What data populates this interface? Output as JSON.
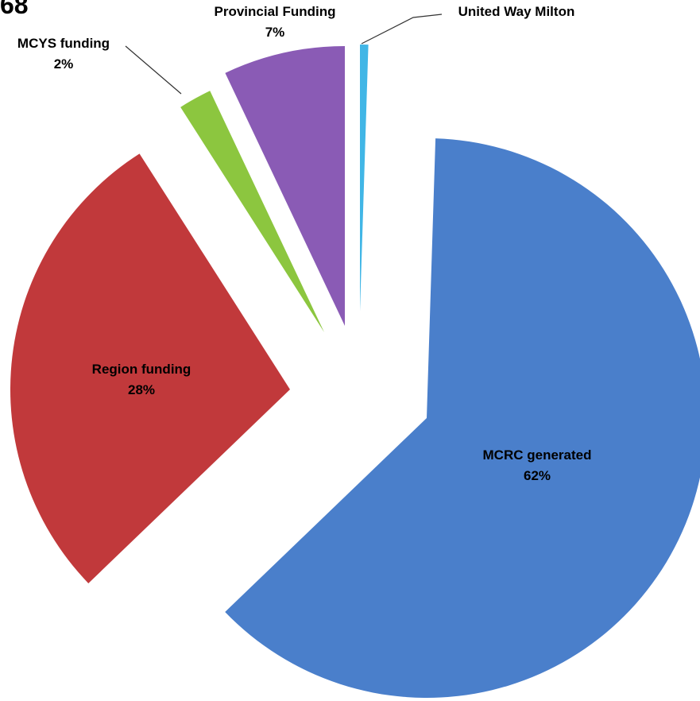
{
  "page": {
    "corner_text": "68"
  },
  "chart_data": {
    "type": "pie",
    "title": "",
    "slices": [
      {
        "name": "United Way Milton",
        "label": "United Way Milton",
        "percent_label": "",
        "value": 0.5,
        "color": "#41b6e6"
      },
      {
        "name": "MCRC generated",
        "label": "MCRC generated",
        "percent_label": "62%",
        "value": 62,
        "color": "#4a7fcb"
      },
      {
        "name": "Region funding",
        "label": "Region funding",
        "percent_label": "28%",
        "value": 28,
        "color": "#c1393b"
      },
      {
        "name": "MCYS funding",
        "label": "MCYS funding",
        "percent_label": "2%",
        "value": 2,
        "color": "#8cc63f"
      },
      {
        "name": "Provincial Funding",
        "label": "Provincial Funding",
        "percent_label": "7%",
        "value": 7,
        "color": "#8a5bb5"
      }
    ],
    "legend": "none"
  }
}
